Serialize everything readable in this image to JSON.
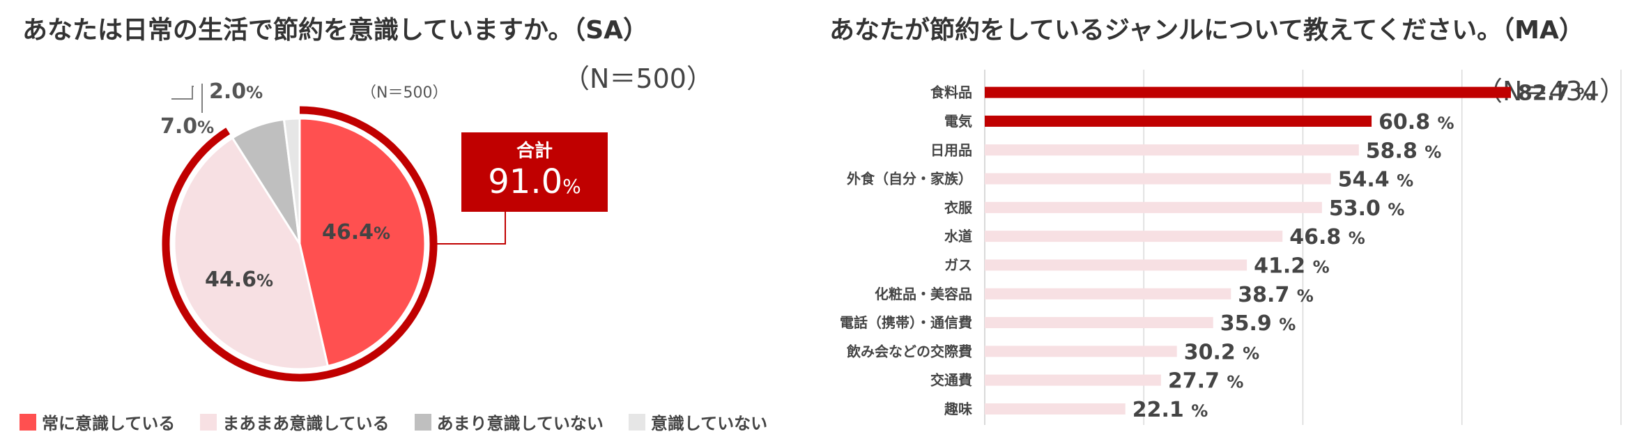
{
  "left_panel": {
    "title": "あなたは日常の生活で節約を意識していますか。（SA）",
    "n_big": "（N＝500）",
    "n_small": "（N＝500）",
    "total": {
      "label": "合計",
      "value": "91.0",
      "unit": "%"
    },
    "colors": {
      "always": "#ff5050",
      "somewhat": "#f7e0e3",
      "not_much": "#bfbfbf",
      "not_at_all": "#e6e6e6",
      "accent": "#c00000"
    }
  },
  "right_panel": {
    "title": "あなたが節約をしているジャンルについて教えてください。（MA）",
    "n": "（N＝434）",
    "colors": {
      "highlight": "#c00000",
      "normal": "#f7e0e3",
      "grid": "#d9d9d9"
    }
  },
  "chart_data": [
    {
      "type": "pie",
      "labels": [
        "常に意識している",
        "まあまあ意識している",
        "あまり意識していない",
        "意識していない"
      ],
      "values": [
        46.4,
        44.6,
        7.0,
        2.0
      ],
      "value_text": [
        "46.4",
        "44.6",
        "7.0",
        "2.0"
      ],
      "unit": "%",
      "legend_position": "bottom"
    },
    {
      "type": "bar",
      "orientation": "horizontal",
      "categories": [
        "食料品",
        "電気",
        "日用品",
        "外食（自分・家族）",
        "衣服",
        "水道",
        "ガス",
        "化粧品・美容品",
        "電話（携帯）・通信費",
        "飲み会などの交際費",
        "交通費",
        "趣味"
      ],
      "values": [
        82.7,
        60.8,
        58.8,
        54.4,
        53.0,
        46.8,
        41.2,
        38.7,
        35.9,
        30.2,
        27.7,
        22.1
      ],
      "value_text": [
        "82.7",
        "60.8",
        "58.8",
        "54.4",
        "53.0",
        "46.8",
        "41.2",
        "38.7",
        "35.9",
        "30.2",
        "27.7",
        "22.1"
      ],
      "unit": "%",
      "highlighted": [
        true,
        true,
        false,
        false,
        false,
        false,
        false,
        false,
        false,
        false,
        false,
        false
      ],
      "xlim": [
        0,
        100
      ],
      "grid": true
    }
  ]
}
